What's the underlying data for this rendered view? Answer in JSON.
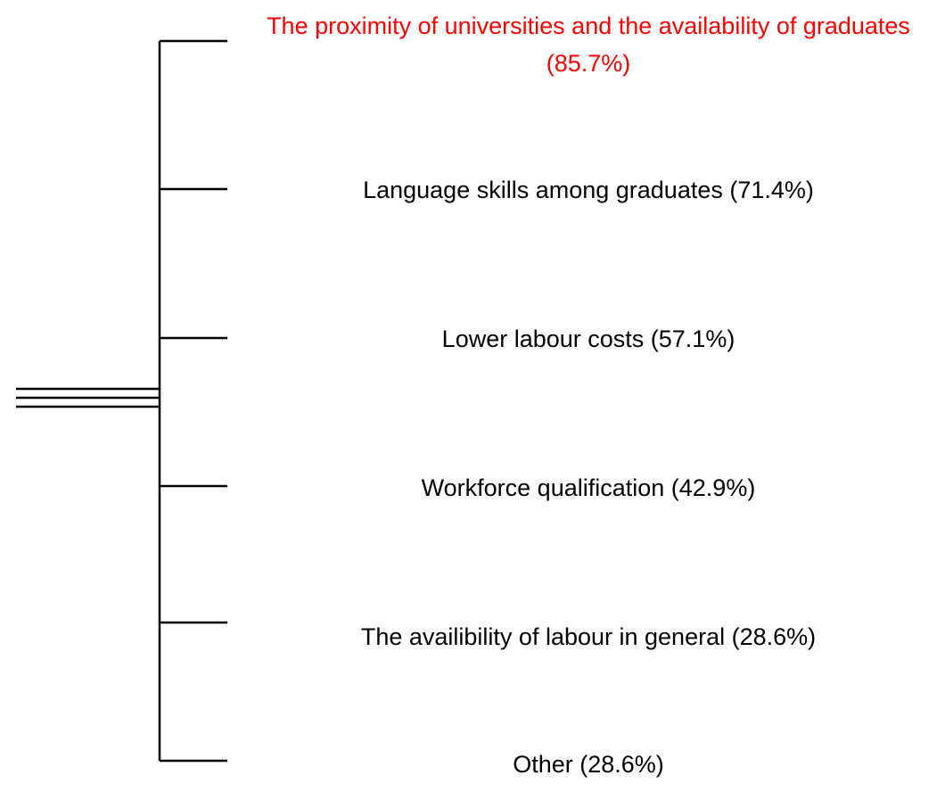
{
  "items": [
    {
      "label": "The proximity of universities and the availability of graduates (85.7%)",
      "color": "#ff0000"
    },
    {
      "label": "Language skills among graduates (71.4%)",
      "color": "#000000"
    },
    {
      "label": "Lower labour costs (57.1%)",
      "color": "#000000"
    },
    {
      "label": "Workforce qualification (42.9%)",
      "color": "#000000"
    },
    {
      "label": "The availibility of labour in general (28.6%)",
      "color": "#000000"
    },
    {
      "label": "Other (28.6%)",
      "color": "#000000"
    }
  ]
}
